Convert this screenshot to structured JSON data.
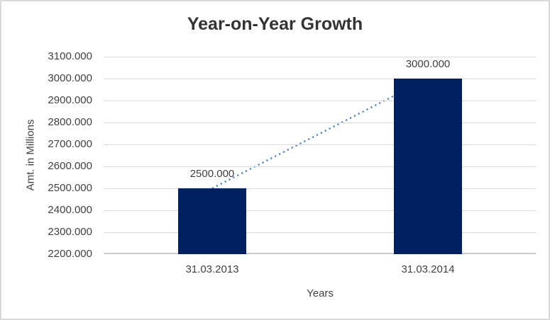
{
  "chart_data": {
    "type": "bar",
    "title": "Year-on-Year Growth",
    "xlabel": "Years",
    "ylabel": "Amt. in Millions",
    "categories": [
      "31.03.2013",
      "31.03.2014"
    ],
    "values": [
      2500,
      3000
    ],
    "data_labels": [
      "2500.000",
      "3000.000"
    ],
    "ytick_labels": [
      "3100.000",
      "3000.000",
      "2900.000",
      "2800.000",
      "2700.000",
      "2600.000",
      "2500.000",
      "2400.000",
      "2300.000",
      "2200.000"
    ],
    "ylim": [
      2200,
      3100
    ],
    "ytick_step": 100,
    "grid": true,
    "legend": false,
    "colors": {
      "bar": "#002060",
      "trendline": "#4a84c4",
      "gridline": "#d9d9d9",
      "axis_line": "#c9c9c9",
      "label_text": "#404040",
      "title_text": "#333333",
      "frame_border": "#d9d9d9"
    },
    "trendline": {
      "style": "dotted",
      "connects": "bar tops (2500 to 3000)"
    }
  }
}
